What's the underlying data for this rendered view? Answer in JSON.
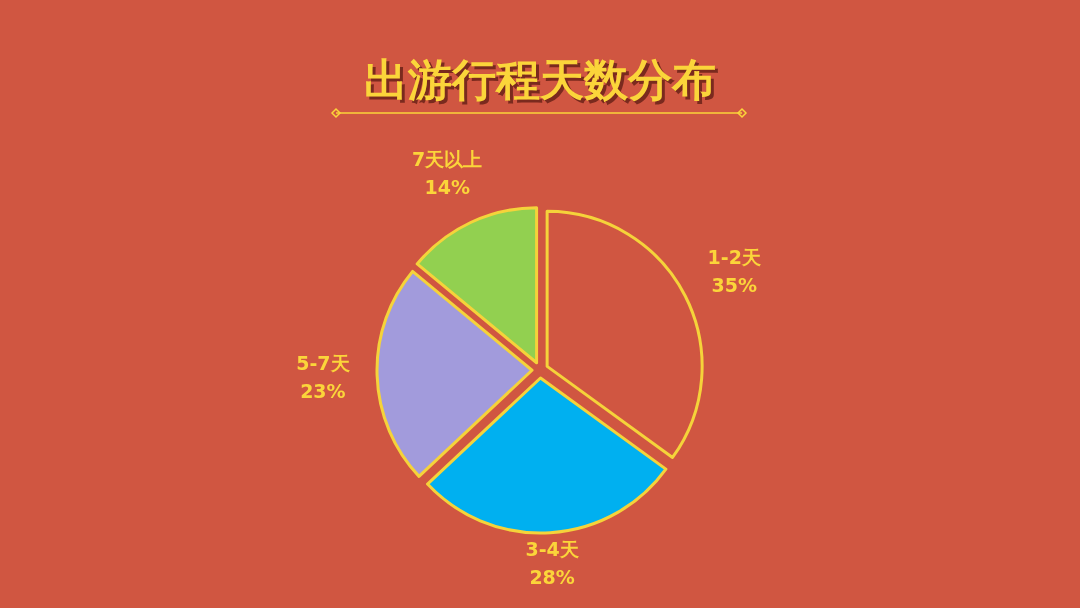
{
  "chart_data": {
    "type": "pie",
    "title": "出游行程天数分布",
    "categories": [
      "1-2天",
      "3-4天",
      "5-7天",
      "7天以上"
    ],
    "values": [
      35,
      28,
      23,
      14
    ],
    "colors": [
      "#d05641",
      "#00b0f0",
      "#a29bdc",
      "#92d050"
    ],
    "value_labels": [
      "35%",
      "28%",
      "23%",
      "14%"
    ]
  }
}
